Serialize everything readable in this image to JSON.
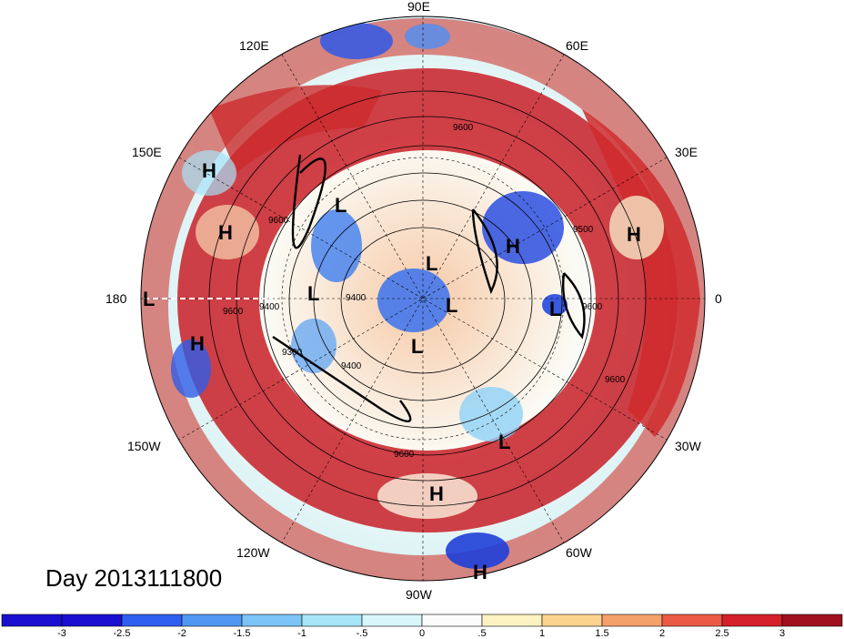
{
  "title": "Day 2013111800",
  "longitude_labels": [
    "90E",
    "60E",
    "30E",
    "0",
    "30W",
    "60W",
    "90W",
    "120W",
    "150W",
    "180",
    "150E",
    "120E"
  ],
  "contour_labels": [
    "9600",
    "9500",
    "9600",
    "9400",
    "9400",
    "9600",
    "9600",
    "9300",
    "9600",
    "9400",
    "9600"
  ],
  "pressure_centers": [
    {
      "type": "H"
    },
    {
      "type": "H"
    },
    {
      "type": "L"
    },
    {
      "type": "L"
    },
    {
      "type": "L"
    },
    {
      "type": "L"
    },
    {
      "type": "H"
    },
    {
      "type": "L"
    },
    {
      "type": "L"
    },
    {
      "type": "H"
    },
    {
      "type": "H"
    },
    {
      "type": "L"
    },
    {
      "type": "H"
    },
    {
      "type": "L"
    },
    {
      "type": "H"
    }
  ],
  "colorbar": {
    "ticks": [
      "-3",
      "-2.5",
      "-2",
      "-1.5",
      "-1",
      "-.5",
      "0",
      ".5",
      "1",
      "1.5",
      "2",
      "2.5",
      "3"
    ],
    "colors": [
      "#1a0fcf",
      "#2e5ff0",
      "#4f97f2",
      "#7cc4f6",
      "#a6e6f8",
      "#d9f6fb",
      "#fbfbfb",
      "#fcf2c2",
      "#fbd38d",
      "#f3a06b",
      "#ec5a45",
      "#d4202a",
      "#a00f1e"
    ]
  }
}
